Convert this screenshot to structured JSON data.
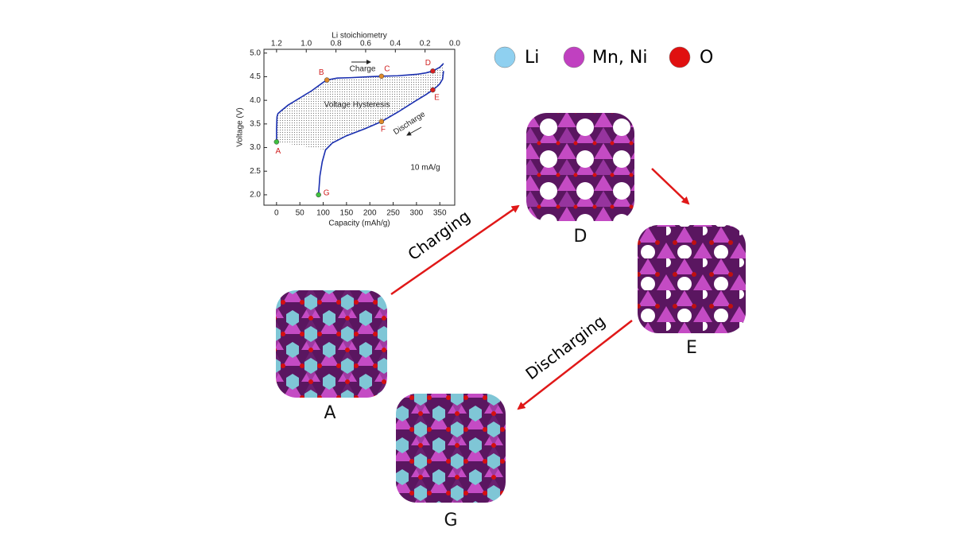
{
  "chart_data": {
    "type": "line",
    "xlabel": "Capacity (mAh/g)",
    "ylabel": "Voltage (V)",
    "x2label": "Li stoichiometry",
    "xlim": [
      -27,
      382
    ],
    "xticks": [
      0,
      50,
      100,
      150,
      200,
      250,
      300,
      350
    ],
    "x2lim": [
      1.285,
      0
    ],
    "x2ticks": [
      1.2,
      {
        "value": 1.0,
        "label": "1.0"
      },
      0.8,
      0.6,
      0.4,
      0.2,
      {
        "value": 0,
        "label": "0.0"
      }
    ],
    "ylim": [
      1.78,
      5.08
    ],
    "yticks": [
      {
        "value": 2,
        "label": "2.0"
      },
      2.5,
      {
        "value": 3,
        "label": "3.0"
      },
      3.5,
      {
        "value": 4,
        "label": "4.0"
      },
      4.5,
      {
        "value": 5,
        "label": "5.0"
      }
    ],
    "series": [
      {
        "color": "#1a2fb0",
        "x": [
          0,
          0,
          1,
          3,
          10,
          25,
          50,
          75,
          100,
          108,
          130,
          160,
          200,
          225,
          260,
          300,
          320,
          335,
          350,
          358
        ],
        "values": [
          3.12,
          3.4,
          3.65,
          3.72,
          3.78,
          3.9,
          4.05,
          4.2,
          4.38,
          4.43,
          4.47,
          4.48,
          4.5,
          4.51,
          4.52,
          4.55,
          4.58,
          4.62,
          4.7,
          4.78
        ]
      },
      {
        "color": "#1a2fb0",
        "x": [
          358,
          356,
          350,
          345,
          335,
          320,
          300,
          260,
          225,
          190,
          150,
          120,
          105,
          98,
          93,
          90
        ],
        "values": [
          4.62,
          4.45,
          4.35,
          4.3,
          4.22,
          4.12,
          4.0,
          3.75,
          3.55,
          3.4,
          3.25,
          3.1,
          2.95,
          2.7,
          2.4,
          2.0
        ]
      }
    ],
    "points": {
      "labels": [
        "A",
        "B",
        "C",
        "D",
        "E",
        "F",
        "G"
      ],
      "x": [
        0,
        108,
        225,
        335,
        335,
        225,
        90
      ],
      "y": [
        3.12,
        4.43,
        4.51,
        4.62,
        4.22,
        3.55,
        2.0
      ],
      "colors": [
        "#3fc03f",
        "#e08a2a",
        "#e08a2a",
        "#d82020",
        "#d82020",
        "#e08a2a",
        "#3fc03f"
      ]
    },
    "annotations": [
      "Voltage Hysteresis",
      "10 mA/g",
      "Charge",
      "Discharge"
    ]
  },
  "legend": [
    {
      "label": "Li",
      "color": "#8fd0f0"
    },
    {
      "label": "Mn, Ni",
      "color": "#c040c0"
    },
    {
      "label": "O",
      "color": "#e01010"
    }
  ],
  "states": [
    {
      "label": "A"
    },
    {
      "label": "D"
    },
    {
      "label": "E"
    },
    {
      "label": "G"
    }
  ],
  "transitions": [
    {
      "label": "Charging"
    },
    {
      "label": "Discharging"
    }
  ]
}
